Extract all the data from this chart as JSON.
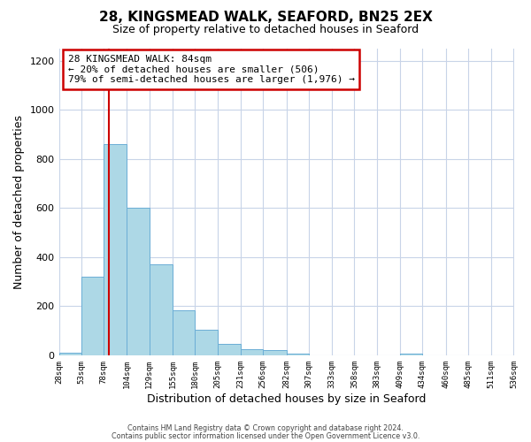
{
  "title": "28, KINGSMEAD WALK, SEAFORD, BN25 2EX",
  "subtitle": "Size of property relative to detached houses in Seaford",
  "xlabel": "Distribution of detached houses by size in Seaford",
  "ylabel": "Number of detached properties",
  "bin_edges": [
    28,
    53,
    78,
    104,
    129,
    155,
    180,
    205,
    231,
    256,
    282,
    307,
    333,
    358,
    383,
    409,
    434,
    460,
    485,
    511,
    536
  ],
  "bar_heights": [
    10,
    320,
    860,
    600,
    370,
    185,
    105,
    47,
    25,
    20,
    5,
    0,
    0,
    0,
    0,
    5,
    0,
    0,
    0,
    0
  ],
  "bar_color": "#add8e6",
  "bar_edge_color": "#6baed6",
  "property_line_x": 84,
  "property_line_color": "#cc0000",
  "annotation_line1": "28 KINGSMEAD WALK: 84sqm",
  "annotation_line2": "← 20% of detached houses are smaller (506)",
  "annotation_line3": "79% of semi-detached houses are larger (1,976) →",
  "annotation_box_color": "#cc0000",
  "ylim": [
    0,
    1250
  ],
  "yticks": [
    0,
    200,
    400,
    600,
    800,
    1000,
    1200
  ],
  "footer_line1": "Contains HM Land Registry data © Crown copyright and database right 2024.",
  "footer_line2": "Contains public sector information licensed under the Open Government Licence v3.0.",
  "background_color": "#ffffff",
  "grid_color": "#c8d4e8"
}
